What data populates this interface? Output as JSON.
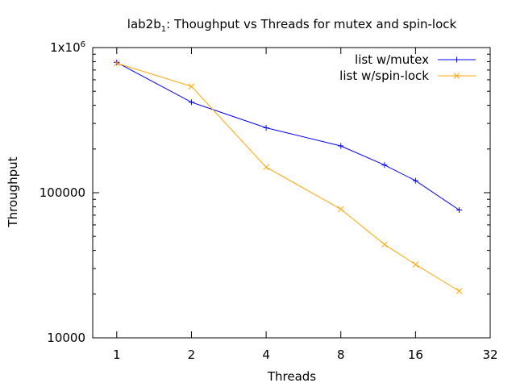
{
  "chart_data": {
    "type": "line",
    "title": {
      "prefix": "lab2b",
      "subscript": "1",
      "suffix": ": Thoughput vs Threads for mutex and spin-lock"
    },
    "xlabel": "Threads",
    "ylabel": "Throughput",
    "x_scale": "log2",
    "y_scale": "log10",
    "xlim": [
      0.8,
      32
    ],
    "ylim": [
      10000,
      1000000
    ],
    "x_ticks": [
      {
        "value": 1,
        "label": "1"
      },
      {
        "value": 2,
        "label": "2"
      },
      {
        "value": 4,
        "label": "4"
      },
      {
        "value": 8,
        "label": "8"
      },
      {
        "value": 16,
        "label": "16"
      },
      {
        "value": 32,
        "label": "32"
      }
    ],
    "y_ticks": [
      {
        "value": 10000,
        "label": "10000"
      },
      {
        "value": 100000,
        "label": "100000"
      },
      {
        "value": 1000000,
        "label_base": "1x10",
        "label_exp": "6"
      }
    ],
    "grid": false,
    "legend_position": "top-right",
    "series": [
      {
        "name": "list w/mutex",
        "color": "#0000ff",
        "marker": "plus",
        "points": [
          {
            "x": 1,
            "y": 790000
          },
          {
            "x": 2,
            "y": 420000
          },
          {
            "x": 4,
            "y": 280000
          },
          {
            "x": 8,
            "y": 210000
          },
          {
            "x": 12,
            "y": 155000
          },
          {
            "x": 16,
            "y": 121000
          },
          {
            "x": 24,
            "y": 76000
          }
        ]
      },
      {
        "name": "list w/spin-lock",
        "color": "#ffa500",
        "marker": "cross",
        "points": [
          {
            "x": 1,
            "y": 780000
          },
          {
            "x": 2,
            "y": 540000
          },
          {
            "x": 4,
            "y": 150000
          },
          {
            "x": 8,
            "y": 77000
          },
          {
            "x": 12,
            "y": 44000
          },
          {
            "x": 16,
            "y": 32000
          },
          {
            "x": 24,
            "y": 21000
          }
        ]
      }
    ]
  }
}
